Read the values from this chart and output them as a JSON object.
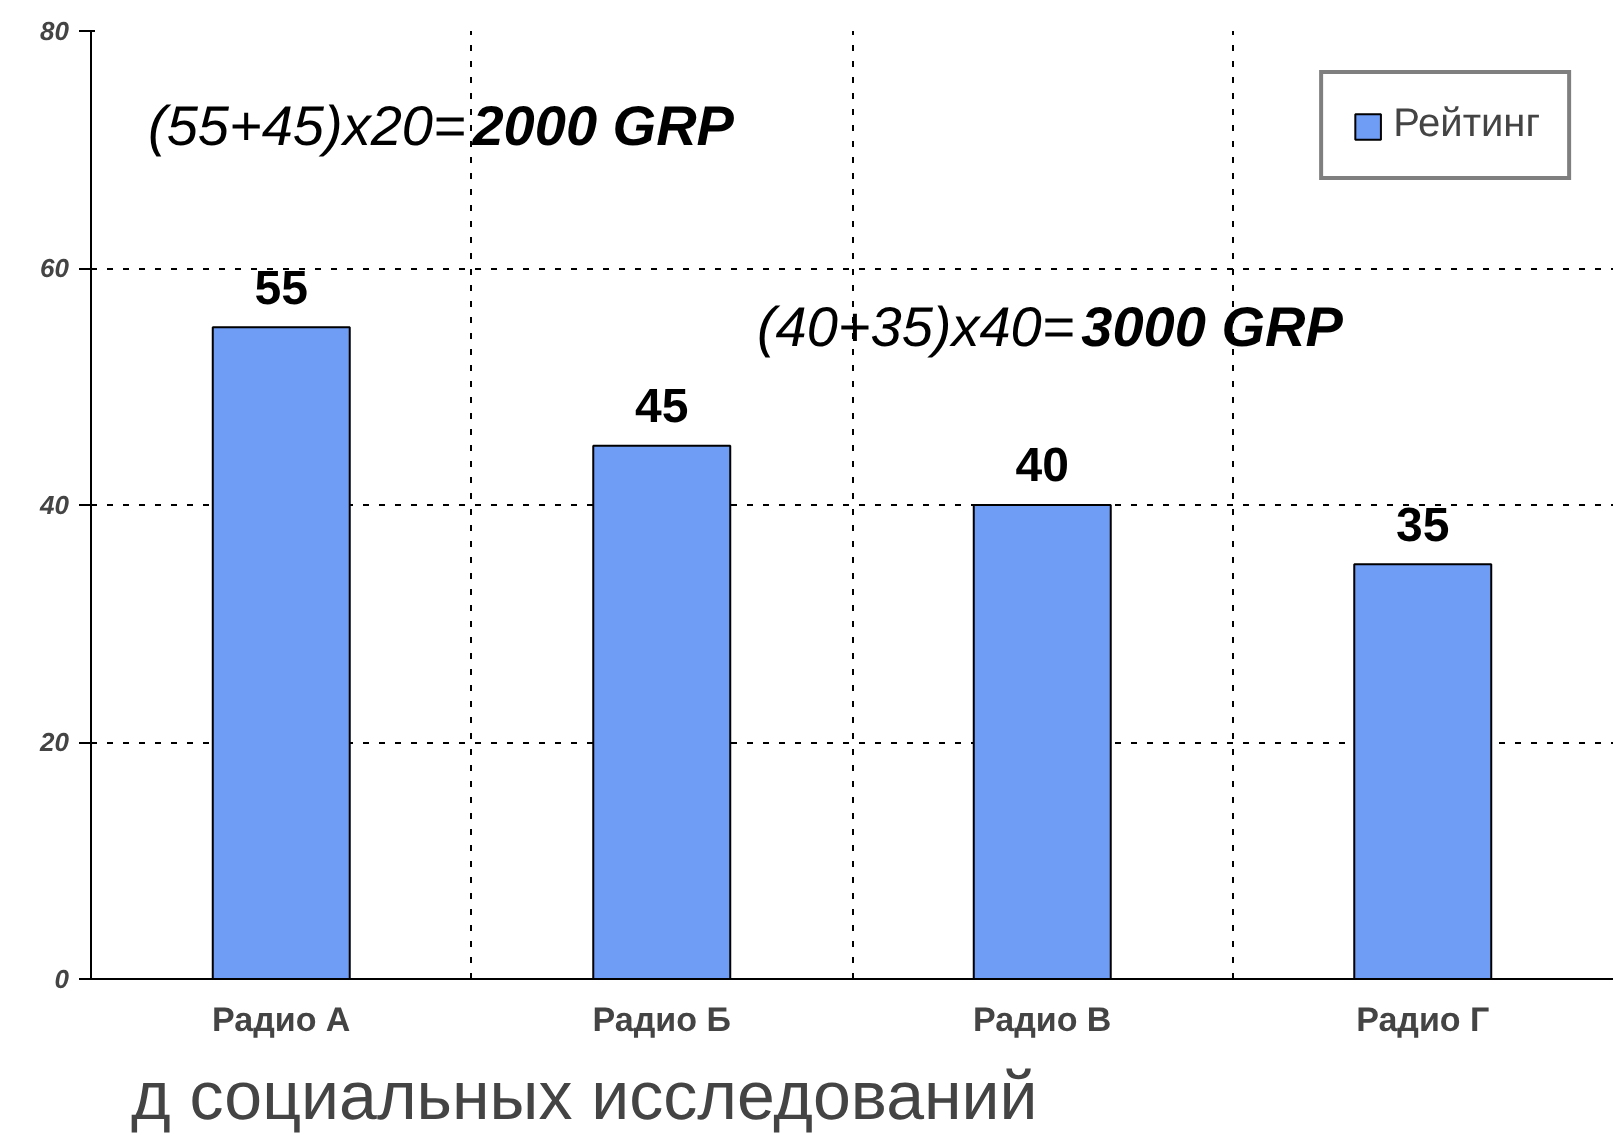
{
  "chart_data": {
    "type": "bar",
    "categories": [
      "Радио А",
      "Радио Б",
      "Радио В",
      "Радио Г"
    ],
    "series": [
      {
        "name": "Рейтинг",
        "color": "#6f9cf5",
        "values": [
          55,
          45,
          40,
          35
        ]
      }
    ],
    "ylim": [
      0,
      80
    ],
    "yticks": [
      0,
      20,
      40,
      60,
      80
    ],
    "grid": true,
    "legend": "top right",
    "data_labels": true,
    "annotations": [
      "(55+45)x20=2000 GRP",
      "(40+35)x40=3000 GRP",
      "д социальных исследований"
    ]
  }
}
